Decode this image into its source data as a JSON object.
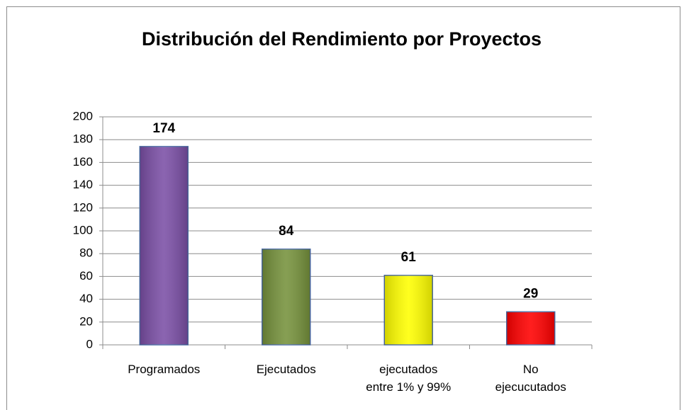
{
  "chart_data": {
    "type": "bar",
    "title": "Distribución del Rendimiento por Proyectos",
    "categories": [
      "Programados",
      "Ejecutados",
      "ejecutados entre 1% y 99%",
      "No ejecucutados"
    ],
    "values": [
      174,
      84,
      61,
      29
    ],
    "colors": [
      "#7b4fa6",
      "#76923c",
      "#ffff00",
      "#ff0000"
    ],
    "ylim": [
      0,
      200
    ],
    "yticks": [
      0,
      20,
      40,
      60,
      80,
      100,
      120,
      140,
      160,
      180,
      200
    ],
    "grid": true
  }
}
